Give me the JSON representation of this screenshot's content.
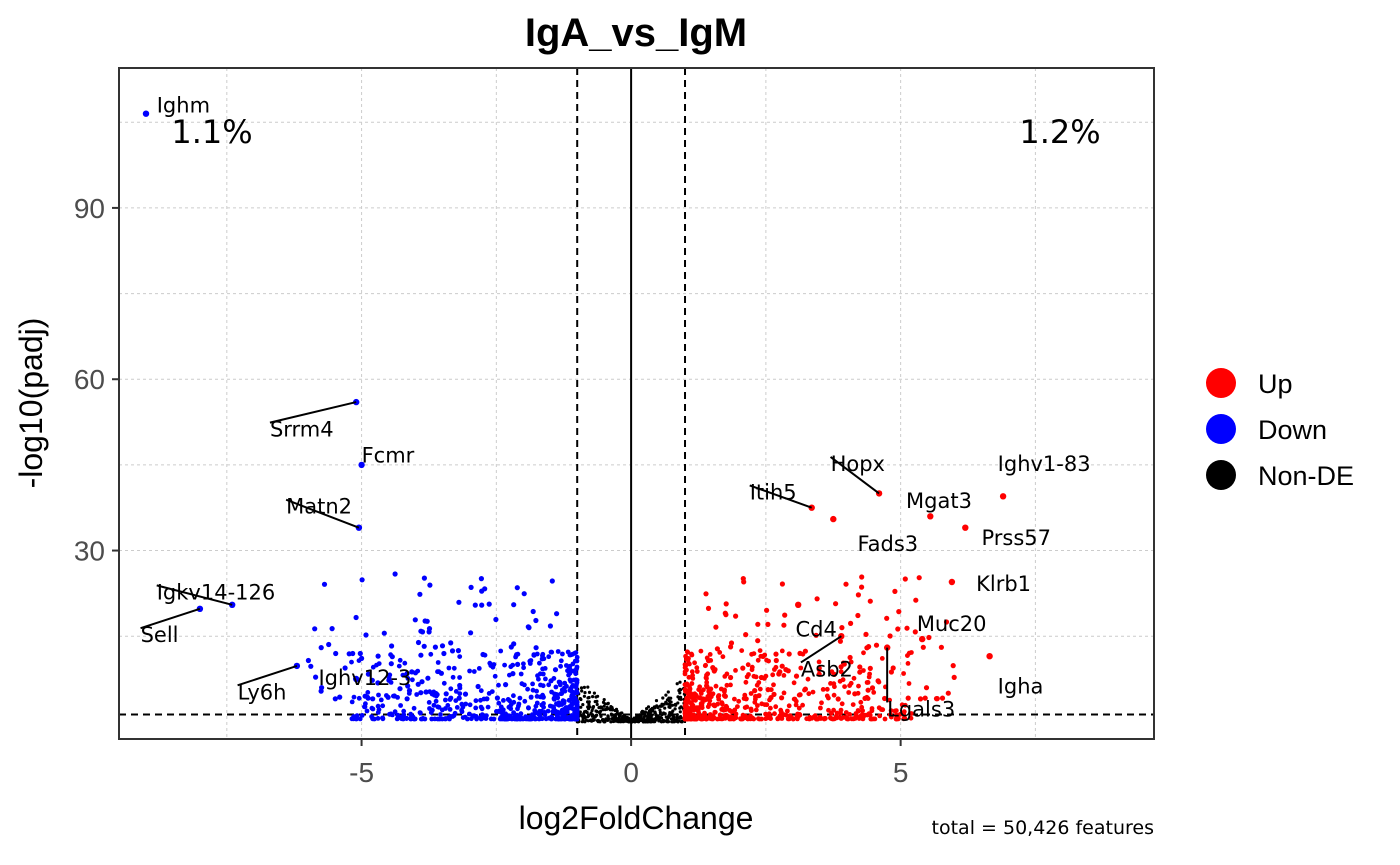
{
  "chart_data": {
    "type": "scatter",
    "title": "IgA_vs_IgM",
    "xlabel": "log2FoldChange",
    "ylabel": "-log10(padj)",
    "xlim": [
      -9.5,
      9.7
    ],
    "ylim": [
      -3.0,
      114.5
    ],
    "xticks": [
      -5,
      0,
      5
    ],
    "yticks": [
      30,
      60,
      90
    ],
    "grid": true,
    "fc_threshold": [
      -1,
      1
    ],
    "padj_threshold_line": 1.3,
    "percent_down": "1.1%",
    "percent_up": "1.2%",
    "caption": "total = 50,426 features",
    "legend": {
      "position": "right",
      "entries": [
        {
          "label": "Up",
          "color": "#ff0000"
        },
        {
          "label": "Down",
          "color": "#0000ff"
        },
        {
          "label": "Non-DE",
          "color": "#000000"
        }
      ]
    },
    "labeled_points": [
      {
        "gene": "Ighm",
        "x": -9.0,
        "y": 106.5,
        "group": "Down",
        "label_x": -8.8,
        "label_y": 107.8
      },
      {
        "gene": "Srrm4",
        "x": -5.1,
        "y": 56.0,
        "group": "Down",
        "label_x": -6.7,
        "label_y": 51.0
      },
      {
        "gene": "Fcmr",
        "x": -5.0,
        "y": 45.0,
        "group": "Down",
        "label_x": -5.0,
        "label_y": 46.5
      },
      {
        "gene": "Matn2",
        "x": -5.05,
        "y": 34.0,
        "group": "Down",
        "label_x": -6.4,
        "label_y": 37.5
      },
      {
        "gene": "Igkv14-126",
        "x": -7.4,
        "y": 20.5,
        "group": "Down",
        "label_x": -8.8,
        "label_y": 22.5
      },
      {
        "gene": "Sell",
        "x": -8.0,
        "y": 19.8,
        "group": "Down",
        "label_x": -9.1,
        "label_y": 15.0
      },
      {
        "gene": "Ly6h",
        "x": -6.2,
        "y": 9.8,
        "group": "Down",
        "label_x": -7.3,
        "label_y": 5.0
      },
      {
        "gene": "Ighv12-3",
        "x": -5.1,
        "y": 7.5,
        "group": "Down",
        "label_x": -5.8,
        "label_y": 7.5
      },
      {
        "gene": "Hopx",
        "x": 4.6,
        "y": 40.0,
        "group": "Up",
        "label_x": 3.7,
        "label_y": 45.0
      },
      {
        "gene": "Ighv1-83",
        "x": 6.9,
        "y": 39.5,
        "group": "Up",
        "label_x": 6.8,
        "label_y": 45.0
      },
      {
        "gene": "Itih5",
        "x": 3.35,
        "y": 37.5,
        "group": "Up",
        "label_x": 2.2,
        "label_y": 40.0
      },
      {
        "gene": "Mgat3",
        "x": 5.55,
        "y": 36.0,
        "group": "Up",
        "label_x": 5.1,
        "label_y": 38.5
      },
      {
        "gene": "Fads3",
        "x": 3.75,
        "y": 35.5,
        "group": "Up",
        "label_x": 4.2,
        "label_y": 31.0
      },
      {
        "gene": "Prss57",
        "x": 6.2,
        "y": 34.0,
        "group": "Up",
        "label_x": 6.5,
        "label_y": 32.0
      },
      {
        "gene": "Klrb1",
        "x": 5.95,
        "y": 24.5,
        "group": "Up",
        "label_x": 6.4,
        "label_y": 24.0
      },
      {
        "gene": "Cd4",
        "x": 3.1,
        "y": 20.5,
        "group": "Up",
        "label_x": 3.05,
        "label_y": 16.0
      },
      {
        "gene": "Muc20",
        "x": 5.4,
        "y": 14.5,
        "group": "Up",
        "label_x": 5.3,
        "label_y": 17.0
      },
      {
        "gene": "Asb2",
        "x": 3.9,
        "y": 15.0,
        "group": "Up",
        "label_x": 3.15,
        "label_y": 9.0
      },
      {
        "gene": "Igha",
        "x": 6.65,
        "y": 11.5,
        "group": "Up",
        "label_x": 6.8,
        "label_y": 6.0
      },
      {
        "gene": "Lgals3",
        "x": 4.75,
        "y": 13.0,
        "group": "Up",
        "label_x": 4.75,
        "label_y": 2.0
      }
    ]
  }
}
